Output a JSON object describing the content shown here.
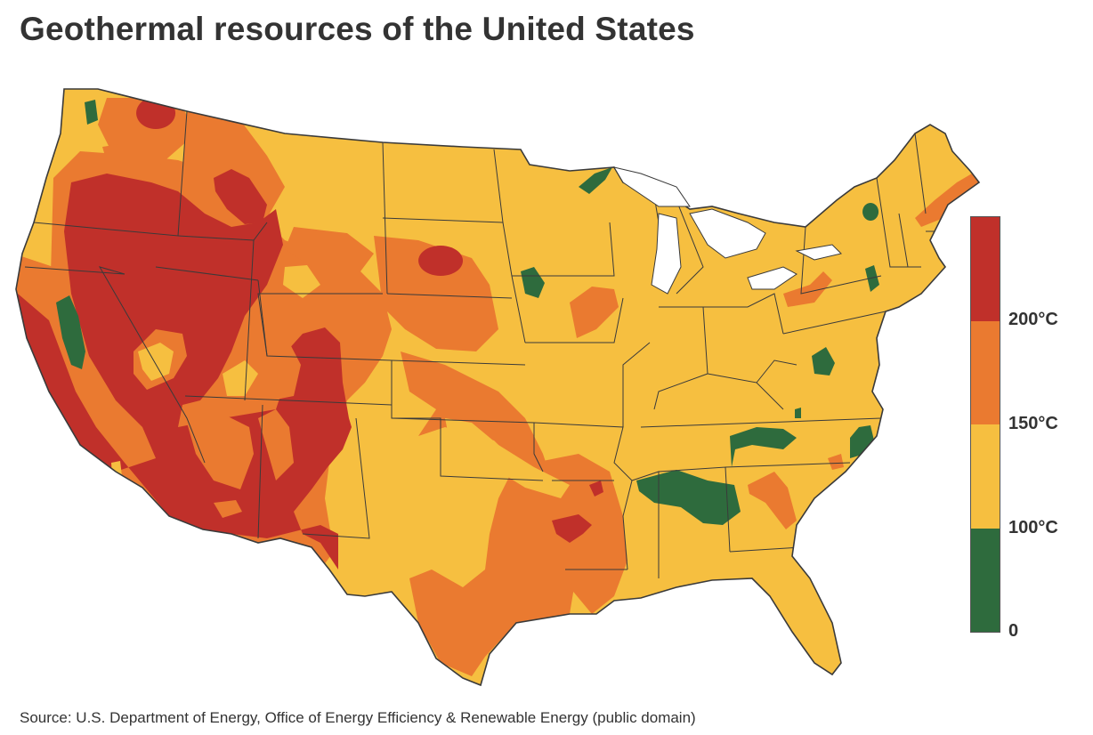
{
  "title": "Geothermal resources of the United States",
  "source": "Source: U.S. Department of Energy, Office of Energy Efficiency & Renewable Energy (public domain)",
  "colors": {
    "above_200": "#c0302a",
    "range_150_200": "#ea7a30",
    "range_100_150": "#f6bf40",
    "range_0_100": "#2e6b3d",
    "borders": "#3a3a3a"
  },
  "legend": {
    "labels": [
      "200°C",
      "150°C",
      "100°C",
      "0"
    ],
    "bands": [
      {
        "color_key": "above_200",
        "fraction": 0.25
      },
      {
        "color_key": "range_150_200",
        "fraction": 0.25
      },
      {
        "color_key": "range_100_150",
        "fraction": 0.25
      },
      {
        "color_key": "range_0_100",
        "fraction": 0.25
      }
    ]
  }
}
